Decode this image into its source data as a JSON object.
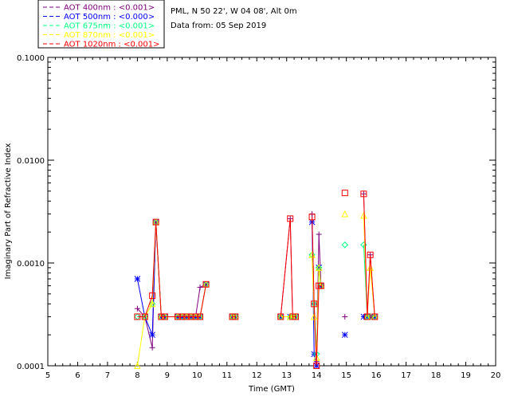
{
  "info": {
    "site": "PML, N 50 22', W 04 08', Alt 0m",
    "date": "Data from: 05 Sep 2019"
  },
  "chart_data": {
    "type": "line",
    "xlabel": "Time (GMT)",
    "ylabel": "Imaginary Part of Refractive Index",
    "xlim": [
      5,
      20
    ],
    "ylim": [
      0.0001,
      0.1
    ],
    "yscale": "log",
    "xticks": [
      5,
      6,
      7,
      8,
      9,
      10,
      11,
      12,
      13,
      14,
      15,
      16,
      17,
      18,
      19,
      20
    ],
    "yticks": [
      {
        "value": 0.0001,
        "label": "0.0001"
      },
      {
        "value": 0.001,
        "label": "0.0010"
      },
      {
        "value": 0.01,
        "label": "0.0100"
      },
      {
        "value": 0.1,
        "label": "0.1000"
      }
    ],
    "legend_position": "above-left",
    "series": [
      {
        "name": "AOT  400nm : <0.001>",
        "color": "#800080",
        "marker": "plus",
        "x": [
          8.0,
          8.25,
          8.5,
          8.62,
          8.8,
          8.92,
          9.35,
          9.5,
          9.65,
          9.8,
          9.95,
          10.1,
          10.3,
          11.18,
          11.28,
          12.8,
          13.12,
          13.2,
          13.3,
          13.85,
          13.92,
          14.0,
          14.08,
          14.15,
          14.95,
          15.58,
          15.7,
          15.8,
          15.95
        ],
        "y": [
          0.00036,
          0.0003,
          0.00015,
          0.0025,
          0.0003,
          0.0003,
          0.0003,
          0.0003,
          0.0003,
          0.0003,
          0.0003,
          0.00058,
          0.00062,
          0.0003,
          0.0003,
          0.0003,
          0.0027,
          0.0003,
          0.0003,
          0.003,
          0.0004,
          0.00011,
          0.0019,
          0.0006,
          0.0003,
          0.0047,
          0.0003,
          0.0012,
          0.0003
        ]
      },
      {
        "name": "AOT  500nm : <0.000>",
        "color": "#0000ff",
        "marker": "asterisk",
        "x": [
          8.0,
          8.25,
          8.5,
          8.62,
          8.8,
          8.92,
          9.35,
          9.5,
          9.65,
          9.8,
          9.95,
          10.1,
          10.3,
          11.18,
          11.28,
          12.8,
          13.12,
          13.2,
          13.3,
          13.85,
          13.92,
          14.0,
          14.08,
          14.15,
          14.95,
          15.58,
          15.7,
          15.8,
          15.95
        ],
        "y": [
          0.0007,
          0.0003,
          0.0002,
          0.0025,
          0.0003,
          0.0003,
          0.0003,
          0.0003,
          0.0003,
          0.0003,
          0.0003,
          0.0003,
          0.00062,
          0.0003,
          0.0003,
          0.0003,
          0.0003,
          0.0003,
          0.0003,
          0.0025,
          0.00013,
          0.0001,
          0.0009,
          0.0006,
          0.0002,
          0.0003,
          0.0003,
          0.0003,
          0.0003
        ]
      },
      {
        "name": "AOT  675nm : <0.001>",
        "color": "#00ff80",
        "marker": "diamond",
        "x": [
          8.0,
          8.25,
          8.5,
          8.62,
          8.8,
          8.92,
          9.35,
          9.5,
          9.65,
          9.8,
          9.95,
          10.1,
          10.3,
          11.18,
          11.28,
          12.8,
          13.12,
          13.2,
          13.3,
          13.85,
          13.92,
          14.0,
          14.08,
          14.15,
          14.95,
          15.58,
          15.7,
          15.8,
          15.95
        ],
        "y": [
          0.0003,
          0.0003,
          0.0004,
          0.0025,
          0.0003,
          0.0003,
          0.0003,
          0.0003,
          0.0003,
          0.0003,
          0.0003,
          0.0003,
          0.00062,
          0.0003,
          0.0003,
          0.0003,
          0.0003,
          0.0003,
          0.0003,
          0.0012,
          0.0004,
          0.00013,
          0.0009,
          0.0006,
          0.0015,
          0.0015,
          0.0003,
          0.0003,
          0.0003
        ]
      },
      {
        "name": "AOT  870nm : <0.001>",
        "color": "#ffff00",
        "marker": "triangle",
        "x": [
          8.0,
          8.25,
          8.5,
          8.62,
          8.8,
          8.92,
          9.35,
          9.5,
          9.65,
          9.8,
          9.95,
          10.1,
          10.3,
          11.18,
          11.28,
          12.8,
          13.12,
          13.2,
          13.3,
          13.85,
          13.92,
          14.0,
          14.08,
          14.15,
          14.95,
          15.58,
          15.7,
          15.8,
          15.95
        ],
        "y": [
          0.0001,
          0.0003,
          0.0004,
          0.0025,
          0.0003,
          0.0003,
          0.0003,
          0.0003,
          0.0003,
          0.0003,
          0.0003,
          0.0003,
          0.00062,
          0.0003,
          0.0003,
          0.0003,
          0.0003,
          0.0003,
          0.0003,
          0.0012,
          0.0003,
          0.00012,
          0.0009,
          0.0006,
          0.003,
          0.0029,
          0.0003,
          0.0009,
          0.0003
        ]
      },
      {
        "name": "AOT 1020nm : <0.001>",
        "color": "#ff0000",
        "marker": "square",
        "x": [
          8.0,
          8.25,
          8.5,
          8.62,
          8.8,
          8.92,
          9.35,
          9.5,
          9.65,
          9.8,
          9.95,
          10.1,
          10.3,
          11.18,
          11.28,
          12.8,
          13.12,
          13.2,
          13.3,
          13.85,
          13.92,
          14.0,
          14.08,
          14.15,
          14.95,
          15.58,
          15.7,
          15.8,
          15.95
        ],
        "y": [
          0.0003,
          0.0003,
          0.00048,
          0.0025,
          0.0003,
          0.0003,
          0.0003,
          0.0003,
          0.0003,
          0.0003,
          0.0003,
          0.0003,
          0.00062,
          0.0003,
          0.0003,
          0.0003,
          0.0027,
          0.0003,
          0.0003,
          0.0028,
          0.0004,
          0.0001,
          0.0006,
          0.0006,
          0.0048,
          0.0047,
          0.0003,
          0.0012,
          0.0003
        ]
      }
    ]
  }
}
